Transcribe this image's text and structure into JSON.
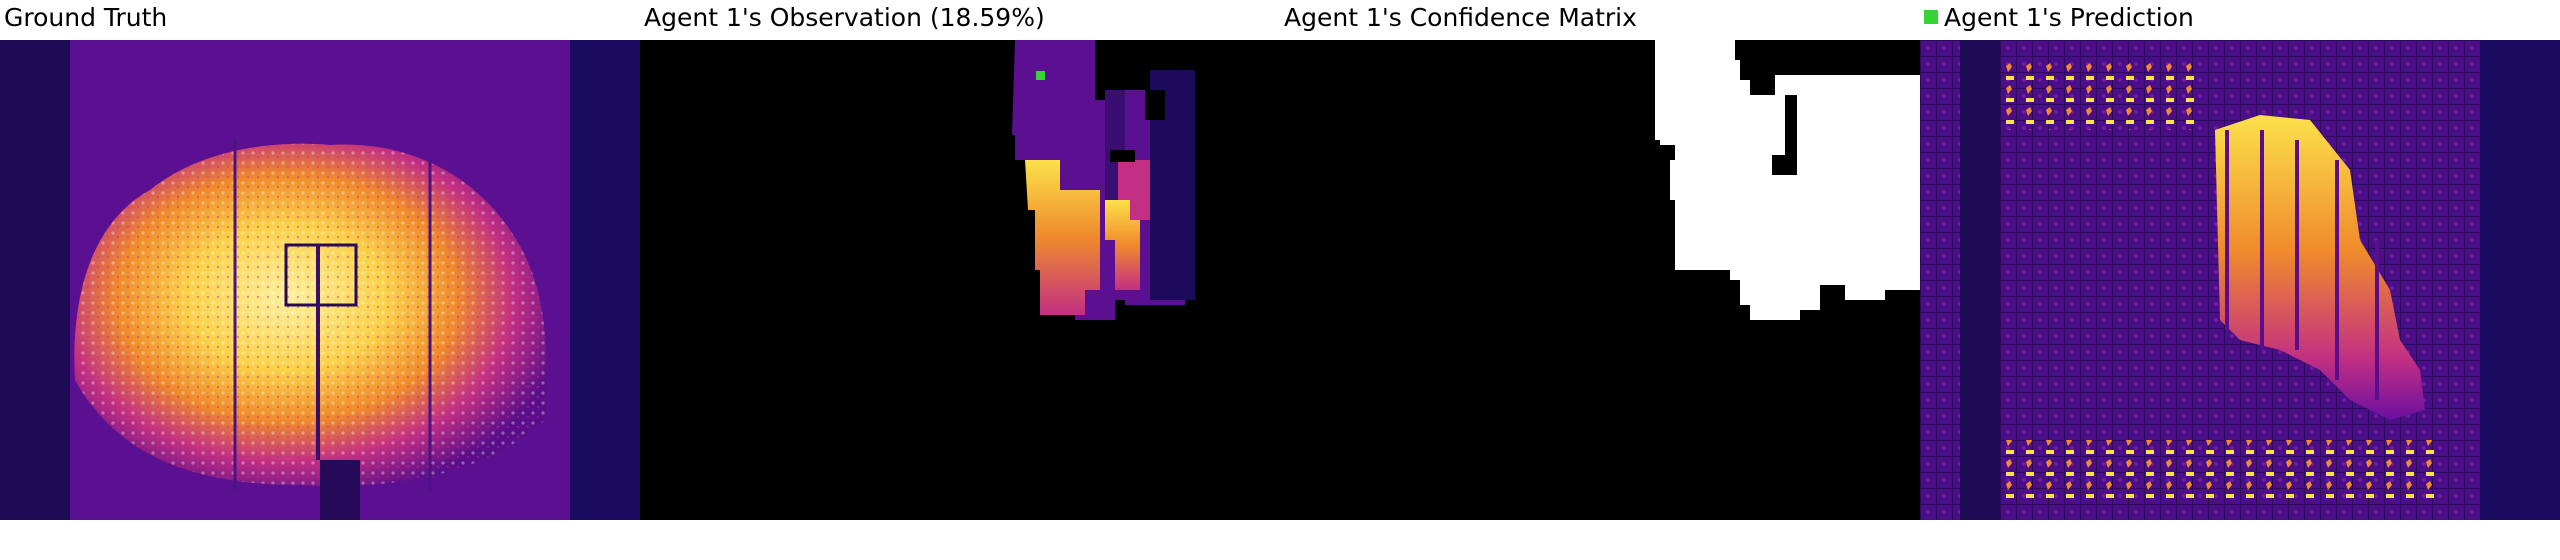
{
  "panels": [
    {
      "title": "Ground Truth"
    },
    {
      "title": "Agent 1's Observation (18.59%)"
    },
    {
      "title": "Agent 1's Confidence Matrix"
    },
    {
      "title": "Agent 1's Prediction"
    }
  ],
  "colors": {
    "background": "#ffffff",
    "agent_marker": "#35d435",
    "mask": "#000000",
    "confidence_known": "#ffffff",
    "plasma_dark": "#1a0a4a",
    "plasma_purple": "#6b0fa0",
    "plasma_magenta": "#c22f83",
    "plasma_orange": "#f08a2c",
    "plasma_yellow": "#fbe14a"
  }
}
